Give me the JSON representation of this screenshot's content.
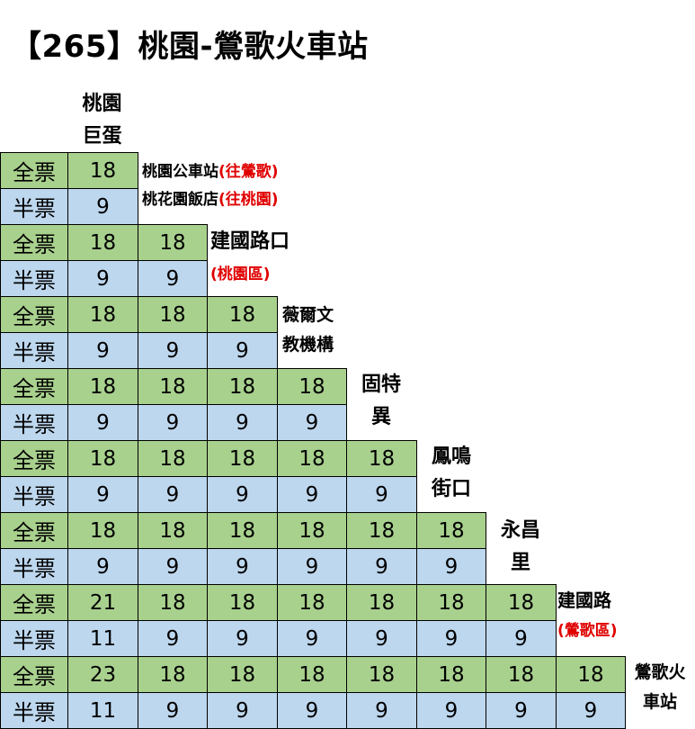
{
  "title": "【265】桃園-鶯歌火車站",
  "row_labels": {
    "full": "全票",
    "half": "半票"
  },
  "stops": [
    {
      "lines": [
        "桃園",
        "巨蛋"
      ],
      "size": 22
    },
    {
      "lines": [
        "桃園公車站",
        "桃花園飯店"
      ],
      "notes": [
        "(往鶯歌)",
        "(往桃園)"
      ],
      "size": 17
    },
    {
      "lines": [
        "建國路口"
      ],
      "notes": [
        "(桃園區)"
      ],
      "size": 22
    },
    {
      "lines": [
        "薇爾文",
        "教機構"
      ],
      "size": 19
    },
    {
      "lines": [
        "固特",
        "異"
      ],
      "size": 22
    },
    {
      "lines": [
        "鳳鳴",
        "街口"
      ],
      "size": 22
    },
    {
      "lines": [
        "永昌",
        "里"
      ],
      "size": 22
    },
    {
      "lines": [
        "建國路"
      ],
      "notes": [
        "(鶯歌區)"
      ],
      "size": 20
    },
    {
      "lines": [
        "鶯歌火",
        "車站"
      ],
      "size": 19
    }
  ],
  "fares": [
    {
      "full": [
        "18"
      ],
      "half": [
        "9"
      ]
    },
    {
      "full": [
        "18",
        "18"
      ],
      "half": [
        "9",
        "9"
      ]
    },
    {
      "full": [
        "18",
        "18",
        "18"
      ],
      "half": [
        "9",
        "9",
        "9"
      ]
    },
    {
      "full": [
        "18",
        "18",
        "18",
        "18"
      ],
      "half": [
        "9",
        "9",
        "9",
        "9"
      ]
    },
    {
      "full": [
        "18",
        "18",
        "18",
        "18",
        "18"
      ],
      "half": [
        "9",
        "9",
        "9",
        "9",
        "9"
      ]
    },
    {
      "full": [
        "18",
        "18",
        "18",
        "18",
        "18",
        "18"
      ],
      "half": [
        "9",
        "9",
        "9",
        "9",
        "9",
        "9"
      ]
    },
    {
      "full": [
        "21",
        "18",
        "18",
        "18",
        "18",
        "18",
        "18"
      ],
      "half": [
        "11",
        "9",
        "9",
        "9",
        "9",
        "9",
        "9"
      ]
    },
    {
      "full": [
        "23",
        "18",
        "18",
        "18",
        "18",
        "18",
        "18",
        "18"
      ],
      "half": [
        "11",
        "9",
        "9",
        "9",
        "9",
        "9",
        "9",
        "9"
      ]
    }
  ],
  "colors": {
    "full_fill": "#a9d18e",
    "half_fill": "#bdd7ee",
    "note_text": "#e00000"
  }
}
